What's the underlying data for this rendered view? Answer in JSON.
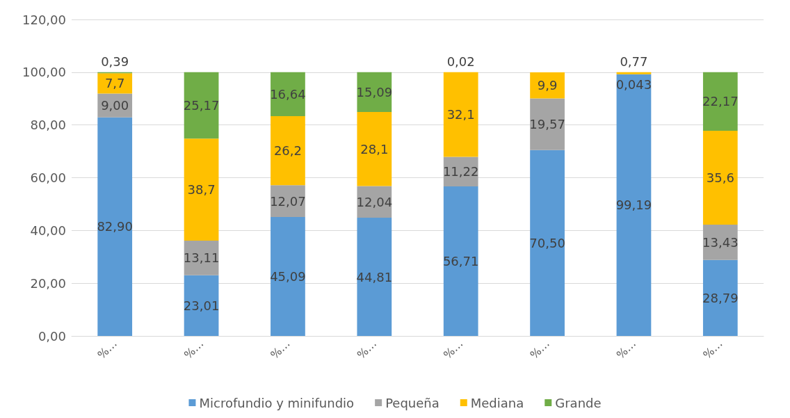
{
  "chart_data": {
    "type": "bar",
    "stacked": true,
    "categories": [
      "%…",
      "%…",
      "%…",
      "%…",
      "%…",
      "%…",
      "%…",
      "%…"
    ],
    "series": [
      {
        "name": "Microfundio y minifundio",
        "color": "#5b9bd5",
        "values": [
          82.9,
          23.01,
          45.09,
          44.81,
          56.71,
          70.5,
          99.19,
          28.79
        ],
        "value_labels": [
          "82,90",
          "23,01",
          "45,09",
          "44,81",
          "56,71",
          "70,50",
          "99,19",
          "28,79"
        ]
      },
      {
        "name": "Pequeña",
        "color": "#a5a5a5",
        "values": [
          9.0,
          13.11,
          12.07,
          12.04,
          11.22,
          19.57,
          0.043,
          13.43
        ],
        "value_labels": [
          "9,00",
          "13,11",
          "12,07",
          "12,04",
          "11,22",
          "19,57",
          "0,043",
          "13,43"
        ]
      },
      {
        "name": "Mediana",
        "color": "#ffc000",
        "values": [
          7.7,
          38.7,
          26.2,
          28.1,
          32.1,
          9.9,
          0.77,
          35.6
        ],
        "value_labels": [
          "7,7",
          "38,7",
          "26,2",
          "28,1",
          "32,1",
          "9,9",
          "0,77",
          "35,6"
        ]
      },
      {
        "name": "Grande",
        "color": "#70ad47",
        "values": [
          0.39,
          25.17,
          16.64,
          15.09,
          0.02,
          null,
          null,
          22.17
        ],
        "value_labels": [
          "0,39",
          "25,17",
          "16,64",
          "15,09",
          "0,02",
          null,
          null,
          "22,17"
        ]
      }
    ],
    "ylim": [
      0,
      120
    ],
    "yticks": [
      {
        "value": 0,
        "label": "0,00"
      },
      {
        "value": 20,
        "label": "20,00"
      },
      {
        "value": 40,
        "label": "40,00"
      },
      {
        "value": 60,
        "label": "60,00"
      },
      {
        "value": 80,
        "label": "80,00"
      },
      {
        "value": 100,
        "label": "100,00"
      },
      {
        "value": 120,
        "label": "120,00"
      }
    ],
    "grid": "y",
    "legend": "bottom"
  }
}
